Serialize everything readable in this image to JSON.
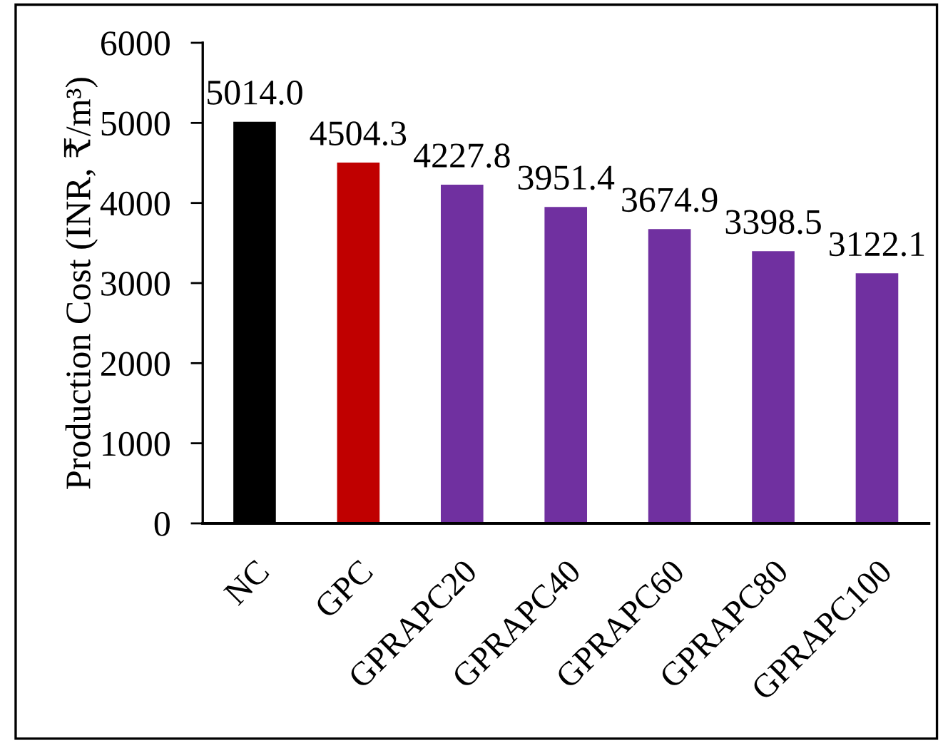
{
  "chart_data": {
    "type": "bar",
    "ylabel": "Production Cost (INR, ₹/m³)",
    "categories": [
      "NC",
      "GPC",
      "GPRAPC20",
      "GPRAPC40",
      "GPRAPC60",
      "GPRAPC80",
      "GPRAPC100"
    ],
    "values": [
      5014.0,
      4504.3,
      4227.8,
      3951.4,
      3674.9,
      3398.5,
      3122.1
    ],
    "value_labels": [
      "5014.0",
      "4504.3",
      "4227.8",
      "3951.4",
      "3674.9",
      "3398.5",
      "3122.1"
    ],
    "colors": [
      "#000000",
      "#c00000",
      "#7030a0",
      "#7030a0",
      "#7030a0",
      "#7030a0",
      "#7030a0"
    ],
    "ylim": [
      0,
      6000
    ],
    "yticks": [
      0,
      1000,
      2000,
      3000,
      4000,
      5000,
      6000
    ]
  }
}
